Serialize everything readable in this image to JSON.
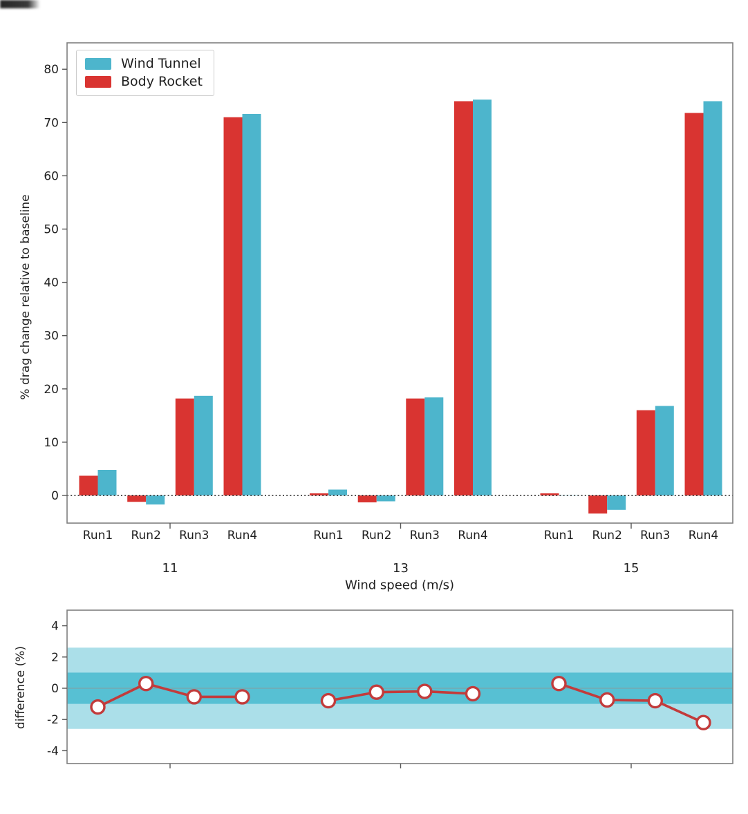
{
  "figure": {
    "background": "#ffffff"
  },
  "chart_data": [
    {
      "type": "bar",
      "title": "",
      "xlabel": "Wind speed (m/s)",
      "ylabel": "% drag change relative to baseline",
      "ylim": [
        -5.2,
        85
      ],
      "yticks": [
        0,
        10,
        20,
        30,
        40,
        50,
        60,
        70,
        80
      ],
      "group_labels": [
        "11",
        "13",
        "15"
      ],
      "run_labels": [
        "Run1",
        "Run2",
        "Run3",
        "Run4"
      ],
      "bar_order_left_to_right": [
        "Body Rocket",
        "Wind Tunnel"
      ],
      "legend_position": "upper left",
      "grid": false,
      "zero_line": "dotted-black",
      "series": [
        {
          "name": "Wind Tunnel",
          "color": "#4db5cc",
          "values": [
            [
              4.8,
              -1.7,
              18.7,
              71.6
            ],
            [
              1.1,
              -1.1,
              18.4,
              74.3
            ],
            [
              0.05,
              -2.7,
              16.8,
              74.0
            ]
          ]
        },
        {
          "name": "Body Rocket",
          "color": "#d93431",
          "values": [
            [
              3.7,
              -1.2,
              18.2,
              71.0
            ],
            [
              0.4,
              -1.3,
              18.2,
              74.0
            ],
            [
              0.4,
              -3.4,
              16.0,
              71.8
            ]
          ]
        }
      ]
    },
    {
      "type": "line",
      "title": "",
      "xlabel": "",
      "ylabel": "difference (%)",
      "ylim": [
        -4.8,
        5.0
      ],
      "yticks": [
        4,
        2,
        0,
        -2,
        -4
      ],
      "grid": false,
      "bands": [
        {
          "range": [
            -2.6,
            2.6
          ],
          "color": "#abdfe9"
        },
        {
          "range": [
            -1.0,
            1.0
          ],
          "color": "#57c0d3"
        }
      ],
      "zero_line_color": "#76a7b0",
      "line_color": "#c23b3b",
      "marker": "circle-white-fill-red-edge",
      "group_labels": [
        "11",
        "13",
        "15"
      ],
      "run_labels": [
        "Run1",
        "Run2",
        "Run3",
        "Run4"
      ],
      "values": [
        [
          -1.2,
          0.3,
          -0.55,
          -0.55
        ],
        [
          -0.8,
          -0.25,
          -0.2,
          -0.35
        ],
        [
          0.3,
          -0.75,
          -0.8,
          -2.2
        ]
      ]
    }
  ]
}
